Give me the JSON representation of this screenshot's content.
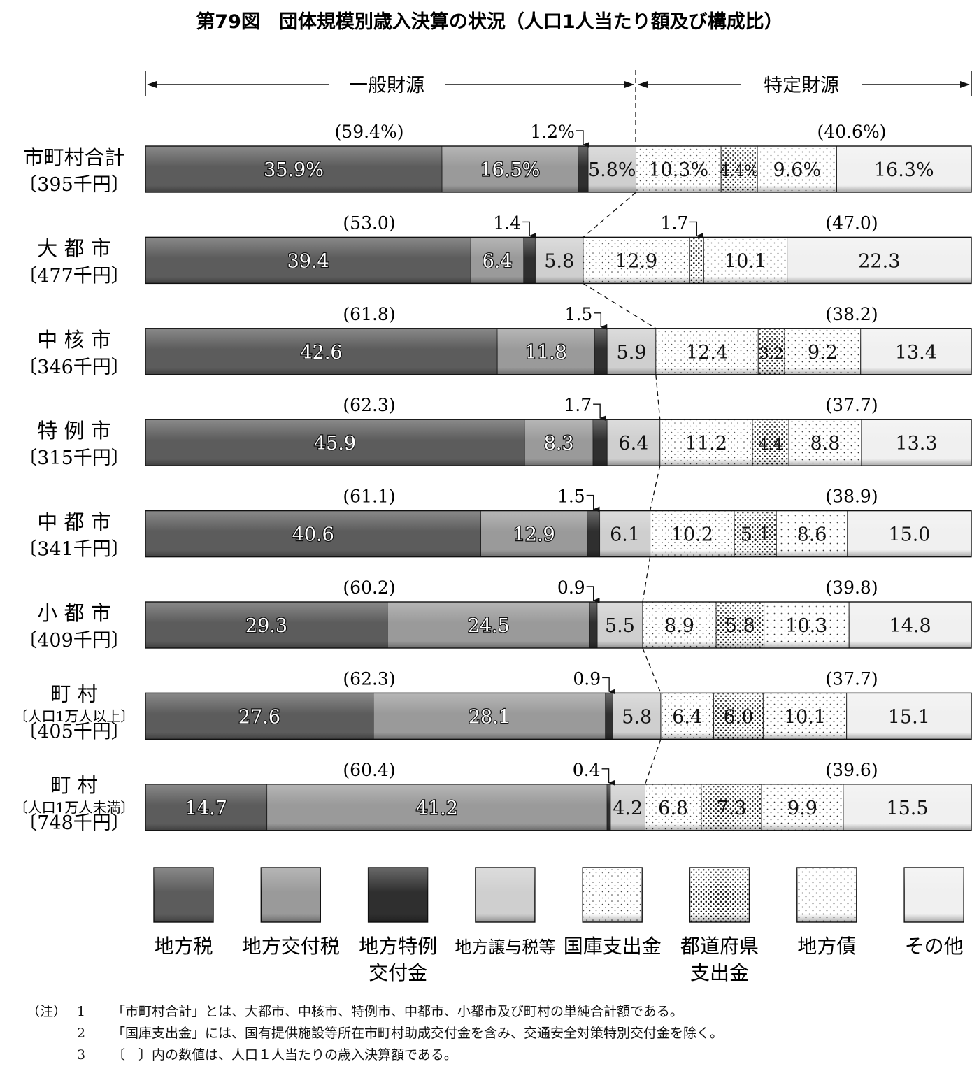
{
  "title": "第79図　団体規模別歳入決算の状況（人口1人当たり額及び構成比）",
  "groups": {
    "general": "一般財源",
    "specific": "特定財源"
  },
  "legend": [
    {
      "key": "tax",
      "label": [
        "地方税"
      ],
      "color": "#5c5c5c",
      "pattern": "solid"
    },
    {
      "key": "grant",
      "label": [
        "地方交付税"
      ],
      "color": "#9a9a9a",
      "pattern": "solid"
    },
    {
      "key": "special",
      "label": [
        "地方特例",
        "交付金"
      ],
      "color": "#2f2f2f",
      "pattern": "solid"
    },
    {
      "key": "transfer",
      "label": [
        "地方譲与税等"
      ],
      "color": "#cfcfcf",
      "pattern": "solid"
    },
    {
      "key": "national",
      "label": [
        "国庫支出金"
      ],
      "color": "#ffffff",
      "pattern": "dots-sparse"
    },
    {
      "key": "prefectural",
      "label": [
        "都道府県",
        "支出金"
      ],
      "color": "#ffffff",
      "pattern": "dots-dense"
    },
    {
      "key": "bond",
      "label": [
        "地方債"
      ],
      "color": "#ffffff",
      "pattern": "dots-medium"
    },
    {
      "key": "other",
      "label": [
        "その他"
      ],
      "color": "#f0f0f0",
      "pattern": "solid"
    }
  ],
  "chart_data": {
    "type": "bar",
    "orientation": "horizontal-stacked-100",
    "title": "第79図　団体規模別歳入決算の状況（人口1人当たり額及び構成比）",
    "categories": [
      {
        "name": "市町村合計",
        "sub": "",
        "amount": "〔395千円〕"
      },
      {
        "name": "大 都 市",
        "sub": "",
        "amount": "〔477千円〕"
      },
      {
        "name": "中 核 市",
        "sub": "",
        "amount": "〔346千円〕"
      },
      {
        "name": "特 例 市",
        "sub": "",
        "amount": "〔315千円〕"
      },
      {
        "name": "中 都 市",
        "sub": "",
        "amount": "〔341千円〕"
      },
      {
        "name": "小 都 市",
        "sub": "",
        "amount": "〔409千円〕"
      },
      {
        "name": "町 村",
        "sub": "〔人口1万人以上〕",
        "amount": "〔405千円〕"
      },
      {
        "name": "町 村",
        "sub": "〔人口1万人未満〕",
        "amount": "〔748千円〕"
      }
    ],
    "series": [
      {
        "name": "地方税",
        "values": [
          35.9,
          39.4,
          42.6,
          45.9,
          40.6,
          29.3,
          27.6,
          14.7
        ]
      },
      {
        "name": "地方交付税",
        "values": [
          16.5,
          6.4,
          11.8,
          8.3,
          12.9,
          24.5,
          28.1,
          41.2
        ]
      },
      {
        "name": "地方特例交付金",
        "values": [
          1.2,
          1.4,
          1.5,
          1.7,
          1.5,
          0.9,
          0.9,
          0.4
        ]
      },
      {
        "name": "地方譲与税等",
        "values": [
          5.8,
          5.8,
          5.9,
          6.4,
          6.1,
          5.5,
          5.8,
          4.2
        ]
      },
      {
        "name": "国庫支出金",
        "values": [
          10.3,
          12.9,
          12.4,
          11.2,
          10.2,
          8.9,
          6.4,
          6.8
        ]
      },
      {
        "name": "都道府県支出金",
        "values": [
          4.4,
          1.7,
          3.2,
          4.4,
          5.1,
          5.8,
          6.0,
          7.3
        ]
      },
      {
        "name": "地方債",
        "values": [
          9.6,
          10.1,
          9.2,
          8.8,
          8.6,
          10.3,
          10.1,
          9.9
        ]
      },
      {
        "name": "その他",
        "values": [
          16.3,
          22.3,
          13.4,
          13.3,
          15.0,
          14.8,
          15.1,
          15.5
        ]
      }
    ],
    "general_share": [
      "(59.4%)",
      "(53.0)",
      "(61.8)",
      "(62.3)",
      "(61.1)",
      "(60.2)",
      "(62.3)",
      "(60.4)"
    ],
    "specific_share": [
      "(40.6%)",
      "(47.0)",
      "(38.2)",
      "(37.7)",
      "(38.9)",
      "(39.8)",
      "(37.7)",
      "(39.6)"
    ],
    "labels": [
      [
        "35.9%",
        "16.5%",
        "1.2%",
        "5.8%",
        "10.3%",
        "4.4%",
        "9.6%",
        "16.3%"
      ],
      [
        "39.4",
        "6.4",
        "1.4",
        "5.8",
        "12.9",
        "1.7",
        "10.1",
        "22.3"
      ],
      [
        "42.6",
        "11.8",
        "1.5",
        "5.9",
        "12.4",
        "3.2",
        "9.2",
        "13.4"
      ],
      [
        "45.9",
        "8.3",
        "1.7",
        "6.4",
        "11.2",
        "4.4",
        "8.8",
        "13.3"
      ],
      [
        "40.6",
        "12.9",
        "1.5",
        "6.1",
        "10.2",
        "5.1",
        "8.6",
        "15.0"
      ],
      [
        "29.3",
        "24.5",
        "0.9",
        "5.5",
        "8.9",
        "5.8",
        "10.3",
        "14.8"
      ],
      [
        "27.6",
        "28.1",
        "0.9",
        "5.8",
        "6.4",
        "6.0",
        "10.1",
        "15.1"
      ],
      [
        "14.7",
        "41.2",
        "0.4",
        "4.2",
        "6.8",
        "7.3",
        "9.9",
        "15.5"
      ]
    ],
    "xlim": [
      0,
      100
    ],
    "legend_position": "bottom"
  },
  "notes": [
    {
      "lead": "（注）",
      "num": "1",
      "text": "「市町村合計」とは、大都市、中核市、特例市、中都市、小都市及び町村の単純合計額である。"
    },
    {
      "lead": "",
      "num": "2",
      "text": "「国庫支出金」には、国有提供施設等所在市町村助成交付金を含み、交通安全対策特別交付金を除く。"
    },
    {
      "lead": "",
      "num": "3",
      "text": "〔　〕内の数値は、人口１人当たりの歳入決算額である。"
    }
  ]
}
